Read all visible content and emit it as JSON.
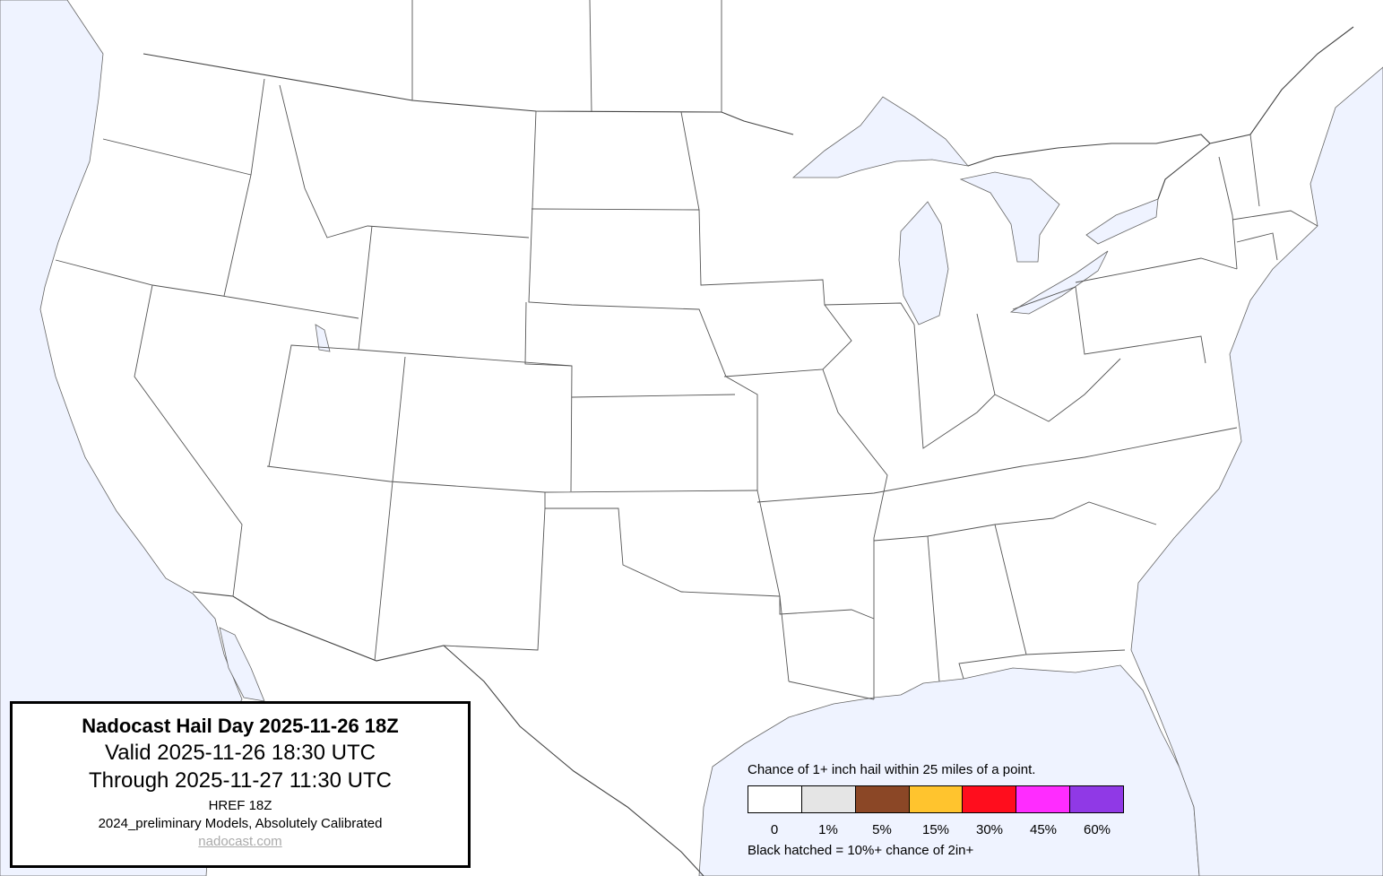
{
  "title_box": {
    "title": "Nadocast Hail Day 2025-11-26 18Z",
    "valid": "Valid 2025-11-26 18:30 UTC",
    "through": "Through 2025-11-27 11:30 UTC",
    "model": "HREF 18Z",
    "calibration": "2024_preliminary Models, Absolutely Calibrated",
    "link": "nadocast.com"
  },
  "legend": {
    "caption": "Chance of 1+ inch hail within 25 miles of a point.",
    "bins": [
      {
        "label": "0",
        "color": "#ffffff"
      },
      {
        "label": "1%",
        "color": "#e5e5e5"
      },
      {
        "label": "5%",
        "color": "#8b4726"
      },
      {
        "label": "15%",
        "color": "#ffc42e"
      },
      {
        "label": "30%",
        "color": "#ff0d1d"
      },
      {
        "label": "45%",
        "color": "#ff2cff"
      },
      {
        "label": "60%",
        "color": "#9039e6"
      }
    ],
    "note": "Black hatched = 10%+ chance of 2in+"
  },
  "colors": {
    "water": "#eff3ff",
    "land": "#ffffff",
    "borders": "#555555"
  }
}
